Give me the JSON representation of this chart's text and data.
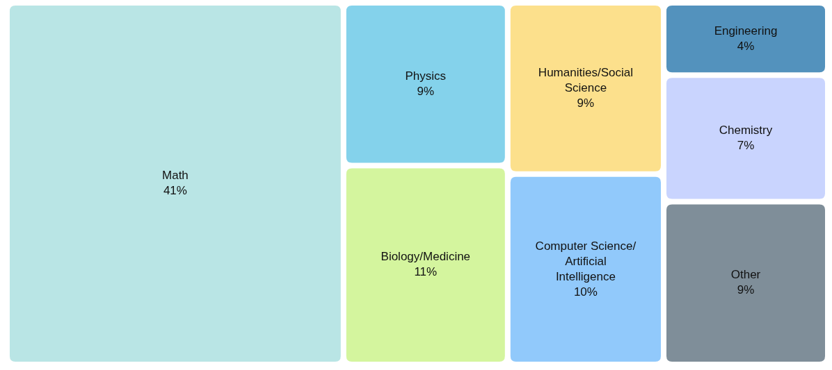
{
  "chart_data": {
    "type": "other",
    "categories": [
      "Math",
      "Physics",
      "Humanities/Social Science",
      "Engineering",
      "Chemistry",
      "Biology/Medicine",
      "Computer Science/Artificial Intelligence",
      "Other"
    ],
    "values": [
      41,
      9,
      9,
      4,
      7,
      11,
      10,
      9
    ],
    "colors": [
      "#b9e5e5",
      "#84d2eb",
      "#fce08c",
      "#5392bd",
      "#c9d4fe",
      "#d4f59e",
      "#91c9fb",
      "#7f8e99"
    ],
    "value_labels": [
      "41%",
      "9%",
      "9%",
      "4%",
      "7%",
      "11%",
      "10%",
      "9%"
    ]
  }
}
